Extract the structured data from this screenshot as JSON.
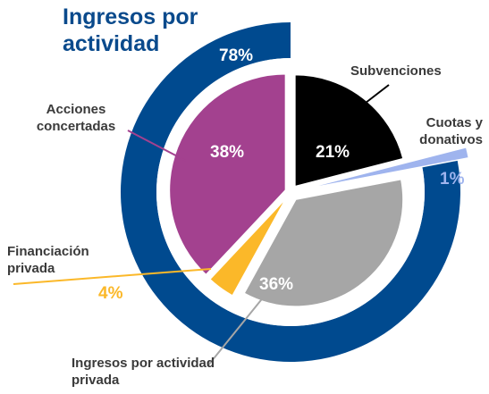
{
  "chart_data": {
    "type": "pie",
    "title": "Ingresos por actividad",
    "categories": [
      "Subvenciones",
      "Cuotas y donativos",
      "Ingresos por actividad privada",
      "Financiación privada",
      "Acciones concertadas"
    ],
    "values": [
      21,
      1,
      36,
      4,
      38
    ],
    "value_labels": [
      "21%",
      "1%",
      "36%",
      "4%",
      "38%"
    ],
    "colors": [
      "#000000",
      "#9fb4ee",
      "#a6a6a6",
      "#fbb829",
      "#a3418f"
    ],
    "outer": {
      "values": [
        78
      ],
      "value_labels": [
        "78%"
      ],
      "color": "#004a8f"
    }
  }
}
